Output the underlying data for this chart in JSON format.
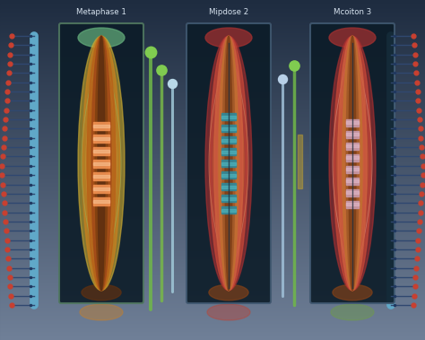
{
  "labels": [
    "Metaphase 1",
    "Mipdose 2",
    "Mcoiton 3"
  ],
  "bg_color": "#7a8fa8",
  "bg_top": "#1e2c40",
  "bg_bottom": "#8090a8",
  "panel1_border": "#506858",
  "panel2_border": "#405868",
  "panel3_border": "#405868",
  "panel_face": "#0a1820",
  "label_color": "#e0e8f0",
  "aster_spine_color": "#5090b8",
  "aster_rod_color": "#304870",
  "aster_dot_orange": "#c84030",
  "aster_dot_blue": "#203860"
}
